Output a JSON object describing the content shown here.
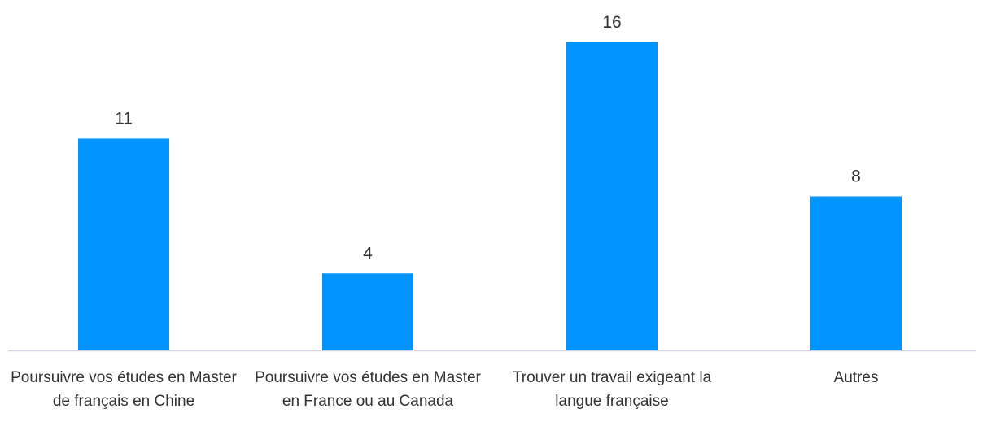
{
  "chart_data": {
    "type": "bar",
    "categories": [
      "Poursuivre vos études en Master de français en Chine",
      "Poursuivre vos études en Master en France ou au Canada",
      "Trouver un travail exigeant la langue française",
      "Autres"
    ],
    "values": [
      11,
      4,
      16,
      8
    ],
    "color": "#0094ff"
  }
}
